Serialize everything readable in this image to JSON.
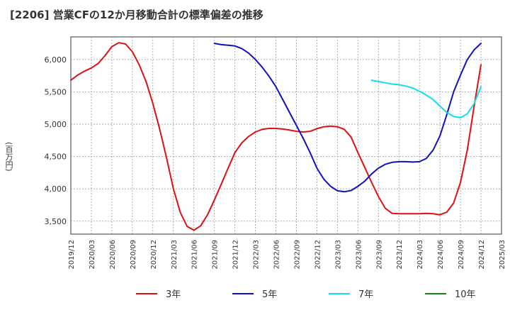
{
  "chart_data": {
    "type": "line",
    "title": "[2206]  営業CFの12か月移動合計の標準偏差の推移",
    "ylabel": "(百万円)",
    "xlabel": "",
    "ylim": [
      3300,
      6350
    ],
    "yticks": [
      3500,
      4000,
      4500,
      5000,
      5500,
      6000
    ],
    "ytick_labels": [
      "3,500",
      "4,000",
      "4,500",
      "5,000",
      "5,500",
      "6,000"
    ],
    "xlim": [
      "2019-12",
      "2025-03"
    ],
    "xticks": [
      "2019/12",
      "2020/03",
      "2020/06",
      "2020/09",
      "2020/12",
      "2021/03",
      "2021/06",
      "2021/09",
      "2021/12",
      "2022/03",
      "2022/06",
      "2022/09",
      "2022/12",
      "2023/03",
      "2023/06",
      "2023/09",
      "2023/12",
      "2024/03",
      "2024/06",
      "2024/09",
      "2024/12",
      "2025/03"
    ],
    "grid": true,
    "legend_position": "bottom",
    "series": [
      {
        "name": "3年",
        "color": "#dd1111",
        "x": [
          "2019-12",
          "2020-01",
          "2020-02",
          "2020-03",
          "2020-04",
          "2020-05",
          "2020-06",
          "2020-07",
          "2020-08",
          "2020-09",
          "2020-10",
          "2020-11",
          "2020-12",
          "2021-01",
          "2021-02",
          "2021-03",
          "2021-04",
          "2021-05",
          "2021-06",
          "2021-07",
          "2021-08",
          "2021-09",
          "2021-10",
          "2021-11",
          "2021-12",
          "2022-01",
          "2022-02",
          "2022-03",
          "2022-04",
          "2022-05",
          "2022-06",
          "2022-07",
          "2022-08",
          "2022-09",
          "2022-10",
          "2022-11",
          "2022-12",
          "2023-01",
          "2023-02",
          "2023-03",
          "2023-04",
          "2023-05",
          "2023-06",
          "2023-07",
          "2023-08",
          "2023-09",
          "2023-10",
          "2023-11",
          "2023-12",
          "2024-01",
          "2024-02",
          "2024-03",
          "2024-04",
          "2024-05",
          "2024-06",
          "2024-07",
          "2024-08",
          "2024-09",
          "2024-10",
          "2024-11",
          "2024-12"
        ],
        "values": [
          5680,
          5760,
          5820,
          5870,
          5940,
          6060,
          6200,
          6260,
          6240,
          6120,
          5920,
          5660,
          5320,
          4920,
          4480,
          4000,
          3640,
          3420,
          3360,
          3430,
          3600,
          3830,
          4070,
          4320,
          4560,
          4710,
          4810,
          4880,
          4920,
          4935,
          4935,
          4925,
          4910,
          4890,
          4880,
          4890,
          4930,
          4960,
          4970,
          4960,
          4920,
          4800,
          4560,
          4330,
          4100,
          3880,
          3700,
          3620,
          3615,
          3615,
          3615,
          3615,
          3620,
          3615,
          3600,
          3640,
          3780,
          4100,
          4600,
          5280,
          5920
        ]
      },
      {
        "name": "5年",
        "color": "#1111bb",
        "x": [
          "2021-09",
          "2021-10",
          "2021-11",
          "2021-12",
          "2022-01",
          "2022-02",
          "2022-03",
          "2022-04",
          "2022-05",
          "2022-06",
          "2022-07",
          "2022-08",
          "2022-09",
          "2022-10",
          "2022-11",
          "2022-12",
          "2023-01",
          "2023-02",
          "2023-03",
          "2023-04",
          "2023-05",
          "2023-06",
          "2023-07",
          "2023-08",
          "2023-09",
          "2023-10",
          "2023-11",
          "2023-12",
          "2024-01",
          "2024-02",
          "2024-03",
          "2024-04",
          "2024-05",
          "2024-06",
          "2024-07",
          "2024-08",
          "2024-09",
          "2024-10",
          "2024-11",
          "2024-12"
        ],
        "values": [
          6250,
          6230,
          6220,
          6210,
          6170,
          6100,
          6000,
          5880,
          5740,
          5580,
          5380,
          5180,
          4980,
          4780,
          4560,
          4320,
          4150,
          4040,
          3970,
          3955,
          3975,
          4040,
          4120,
          4230,
          4320,
          4380,
          4410,
          4420,
          4420,
          4415,
          4420,
          4470,
          4600,
          4820,
          5150,
          5500,
          5760,
          6000,
          6150,
          6250
        ]
      },
      {
        "name": "7年",
        "color": "#11ddee",
        "x": [
          "2023-08",
          "2023-09",
          "2023-10",
          "2023-11",
          "2023-12",
          "2024-01",
          "2024-02",
          "2024-03",
          "2024-04",
          "2024-05",
          "2024-06",
          "2024-07",
          "2024-08",
          "2024-09",
          "2024-10",
          "2024-11",
          "2024-12"
        ],
        "values": [
          5680,
          5660,
          5640,
          5620,
          5610,
          5590,
          5560,
          5510,
          5450,
          5380,
          5280,
          5180,
          5120,
          5100,
          5160,
          5320,
          5580
        ]
      },
      {
        "name": "10年",
        "color": "#118811",
        "x": [],
        "values": []
      }
    ]
  }
}
